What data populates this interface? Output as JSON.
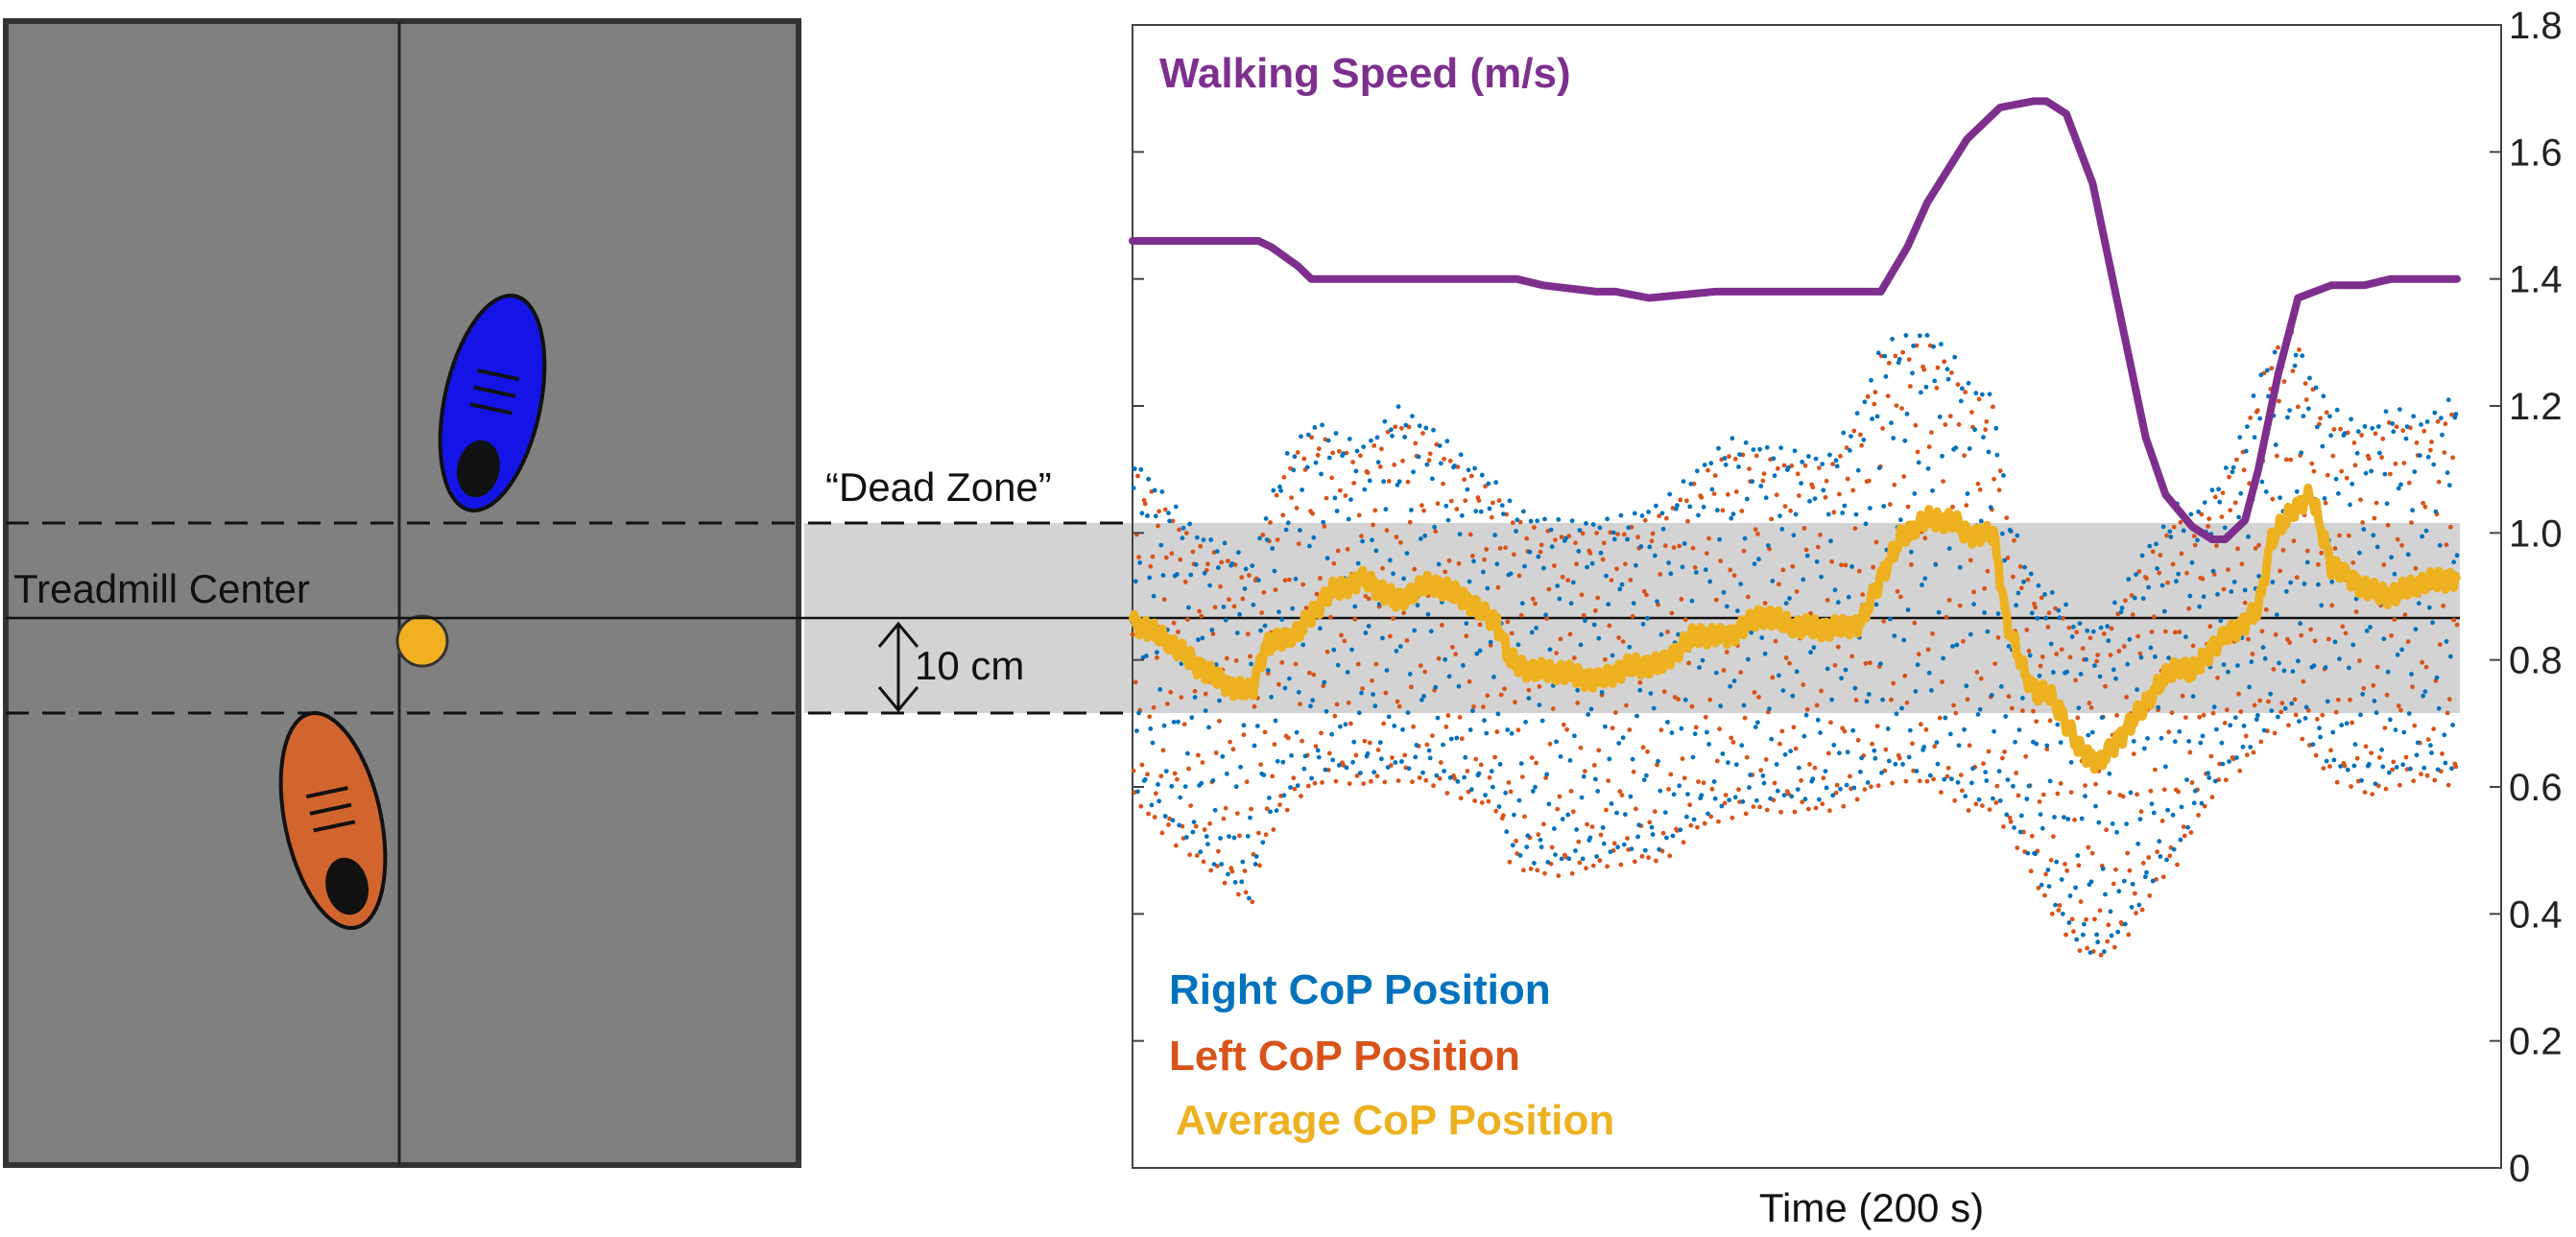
{
  "colors": {
    "treadmill_fill": "#808080",
    "treadmill_border": "#333333",
    "right_foot": "#1414e6",
    "left_foot": "#d2642d",
    "average_dot": "#f0b020",
    "dead_zone": "#d3d3d3",
    "right_cop": "#0072bd",
    "left_cop": "#d95319",
    "average_cop": "#edb120",
    "walking_speed": "#7e2f8e"
  },
  "diagram": {
    "treadmill_center_label": "Treadmill Center",
    "dead_zone_label": "“Dead Zone”",
    "width_label": "10 cm",
    "icons": [
      "right-foot-icon",
      "left-foot-icon",
      "average-cop-dot-icon"
    ]
  },
  "chart_data": {
    "type": "line",
    "xlabel": "Time (200 s)",
    "xlim": [
      0,
      200
    ],
    "ylim": [
      0,
      1.8
    ],
    "y_axis_side": "right",
    "grid": false,
    "yticks": [
      "0",
      "0.2",
      "0.4",
      "0.6",
      "0.8",
      "1.0",
      "1.2",
      "1.4",
      "1.6",
      "1.8"
    ],
    "dead_zone": [
      0.72,
      1.02
    ],
    "center_line": 0.87,
    "legend": [
      "Walking Speed (m/s)",
      "Right CoP Position",
      "Left CoP Position",
      "Average CoP Position"
    ],
    "walking_speed": {
      "name": "Walking Speed (m/s)",
      "x": [
        0,
        10,
        19,
        21,
        25,
        27,
        32,
        42,
        52,
        58,
        62,
        70,
        73,
        78,
        88,
        95,
        105,
        113,
        117,
        120,
        126,
        131,
        136,
        138,
        141,
        145,
        150,
        153,
        156,
        160,
        163,
        165,
        168,
        170,
        173,
        176,
        181,
        186,
        190,
        200
      ],
      "y": [
        1.46,
        1.46,
        1.46,
        1.45,
        1.42,
        1.4,
        1.4,
        1.4,
        1.4,
        1.4,
        1.39,
        1.38,
        1.38,
        1.37,
        1.38,
        1.38,
        1.38,
        1.38,
        1.45,
        1.52,
        1.62,
        1.67,
        1.68,
        1.68,
        1.66,
        1.55,
        1.3,
        1.15,
        1.06,
        1.01,
        0.99,
        0.99,
        1.02,
        1.1,
        1.25,
        1.37,
        1.39,
        1.39,
        1.4,
        1.4
      ]
    },
    "average_cop": {
      "name": "Average CoP Position",
      "x": [
        0,
        5,
        10,
        15,
        18,
        20,
        25,
        27,
        30,
        35,
        40,
        45,
        50,
        55,
        57,
        60,
        65,
        70,
        75,
        80,
        85,
        90,
        95,
        100,
        105,
        110,
        113,
        116,
        120,
        124,
        126,
        130,
        132,
        135,
        137,
        138,
        140,
        143,
        146,
        150,
        153,
        155,
        158,
        160,
        163,
        165,
        168,
        170,
        172,
        175,
        178,
        181,
        184,
        187,
        190,
        195,
        200
      ],
      "y": [
        0.86,
        0.83,
        0.79,
        0.76,
        0.75,
        0.82,
        0.84,
        0.87,
        0.91,
        0.93,
        0.89,
        0.92,
        0.9,
        0.86,
        0.8,
        0.78,
        0.78,
        0.77,
        0.79,
        0.79,
        0.84,
        0.84,
        0.87,
        0.85,
        0.85,
        0.86,
        0.93,
        0.99,
        1.02,
        1.02,
        1.0,
        1.0,
        0.86,
        0.77,
        0.74,
        0.75,
        0.72,
        0.66,
        0.64,
        0.69,
        0.73,
        0.76,
        0.79,
        0.78,
        0.82,
        0.84,
        0.86,
        0.88,
        0.99,
        1.03,
        1.06,
        0.95,
        0.93,
        0.91,
        0.9,
        0.92,
        0.93
      ]
    },
    "right_cop": {
      "name": "Right CoP Position",
      "upper_envelope": {
        "x": [
          0,
          5,
          10,
          15,
          18,
          20,
          23,
          25,
          28,
          30,
          35,
          40,
          45,
          50,
          55,
          57,
          60,
          65,
          70,
          75,
          80,
          85,
          90,
          95,
          100,
          105,
          110,
          113,
          116,
          120,
          124,
          126,
          130,
          132,
          135,
          137,
          140,
          143,
          146,
          150,
          153,
          155,
          158,
          160,
          163,
          165,
          168,
          170,
          172,
          175,
          178,
          181,
          184,
          187,
          190,
          195,
          200
        ],
        "y": [
          1.12,
          1.06,
          1.0,
          0.98,
          0.95,
          1.03,
          1.12,
          1.15,
          1.18,
          1.16,
          1.14,
          1.2,
          1.17,
          1.12,
          1.08,
          1.05,
          1.03,
          1.02,
          1.02,
          1.03,
          1.05,
          1.1,
          1.15,
          1.14,
          1.13,
          1.12,
          1.2,
          1.3,
          1.31,
          1.32,
          1.28,
          1.24,
          1.22,
          1.05,
          0.95,
          0.92,
          0.9,
          0.86,
          0.85,
          0.92,
          0.98,
          1.0,
          1.05,
          1.03,
          1.07,
          1.1,
          1.17,
          1.25,
          1.28,
          1.32,
          1.25,
          1.2,
          1.18,
          1.17,
          1.2,
          1.18,
          1.22
        ]
      },
      "lower_envelope": {
        "x": [
          0,
          5,
          10,
          15,
          18,
          20,
          23,
          25,
          28,
          30,
          35,
          40,
          45,
          50,
          55,
          57,
          60,
          65,
          70,
          75,
          80,
          85,
          90,
          95,
          100,
          105,
          110,
          113,
          116,
          120,
          124,
          126,
          130,
          132,
          135,
          137,
          140,
          143,
          146,
          150,
          153,
          155,
          158,
          160,
          163,
          165,
          168,
          170,
          172,
          175,
          178,
          181,
          184,
          187,
          190,
          195,
          200
        ],
        "y": [
          0.6,
          0.55,
          0.5,
          0.45,
          0.42,
          0.53,
          0.58,
          0.6,
          0.62,
          0.63,
          0.62,
          0.63,
          0.62,
          0.6,
          0.58,
          0.5,
          0.48,
          0.48,
          0.49,
          0.5,
          0.5,
          0.55,
          0.57,
          0.58,
          0.58,
          0.58,
          0.6,
          0.62,
          0.63,
          0.62,
          0.6,
          0.58,
          0.58,
          0.55,
          0.5,
          0.45,
          0.4,
          0.35,
          0.33,
          0.38,
          0.43,
          0.47,
          0.5,
          0.55,
          0.6,
          0.63,
          0.65,
          0.68,
          0.7,
          0.72,
          0.67,
          0.63,
          0.62,
          0.6,
          0.62,
          0.63,
          0.62
        ]
      }
    },
    "left_cop": {
      "name": "Left CoP Position",
      "upper_envelope": {
        "x": [
          0,
          5,
          10,
          15,
          18,
          20,
          23,
          25,
          28,
          30,
          35,
          40,
          45,
          50,
          55,
          57,
          60,
          65,
          70,
          75,
          80,
          85,
          90,
          95,
          100,
          105,
          110,
          113,
          116,
          120,
          124,
          126,
          130,
          132,
          135,
          137,
          140,
          143,
          146,
          150,
          153,
          155,
          158,
          160,
          163,
          165,
          168,
          170,
          172,
          175,
          178,
          181,
          184,
          187,
          190,
          195,
          200
        ],
        "y": [
          1.1,
          1.04,
          0.98,
          0.96,
          0.93,
          1.01,
          1.1,
          1.13,
          1.16,
          1.14,
          1.12,
          1.18,
          1.15,
          1.1,
          1.06,
          1.03,
          1.01,
          1.0,
          1.0,
          1.01,
          1.03,
          1.08,
          1.13,
          1.12,
          1.11,
          1.1,
          1.18,
          1.28,
          1.29,
          1.3,
          1.26,
          1.22,
          1.2,
          1.03,
          0.93,
          0.9,
          0.88,
          0.84,
          0.83,
          0.9,
          0.96,
          0.98,
          1.03,
          1.01,
          1.05,
          1.08,
          1.15,
          1.23,
          1.28,
          1.33,
          1.23,
          1.18,
          1.16,
          1.15,
          1.18,
          1.16,
          1.2
        ]
      },
      "lower_envelope": {
        "x": [
          0,
          5,
          10,
          15,
          18,
          20,
          23,
          25,
          28,
          30,
          35,
          40,
          45,
          50,
          55,
          57,
          60,
          65,
          70,
          75,
          80,
          85,
          90,
          95,
          100,
          105,
          110,
          113,
          116,
          120,
          124,
          126,
          130,
          132,
          135,
          137,
          140,
          143,
          146,
          150,
          153,
          155,
          158,
          160,
          163,
          165,
          168,
          170,
          172,
          175,
          178,
          181,
          184,
          187,
          190,
          195,
          200
        ],
        "y": [
          0.58,
          0.52,
          0.48,
          0.44,
          0.41,
          0.51,
          0.56,
          0.58,
          0.6,
          0.61,
          0.6,
          0.61,
          0.6,
          0.58,
          0.56,
          0.48,
          0.46,
          0.46,
          0.47,
          0.48,
          0.48,
          0.53,
          0.55,
          0.56,
          0.56,
          0.56,
          0.58,
          0.6,
          0.61,
          0.6,
          0.58,
          0.56,
          0.56,
          0.53,
          0.48,
          0.43,
          0.38,
          0.34,
          0.33,
          0.36,
          0.41,
          0.45,
          0.48,
          0.53,
          0.58,
          0.61,
          0.63,
          0.66,
          0.68,
          0.7,
          0.65,
          0.61,
          0.6,
          0.58,
          0.6,
          0.61,
          0.6
        ]
      }
    }
  }
}
